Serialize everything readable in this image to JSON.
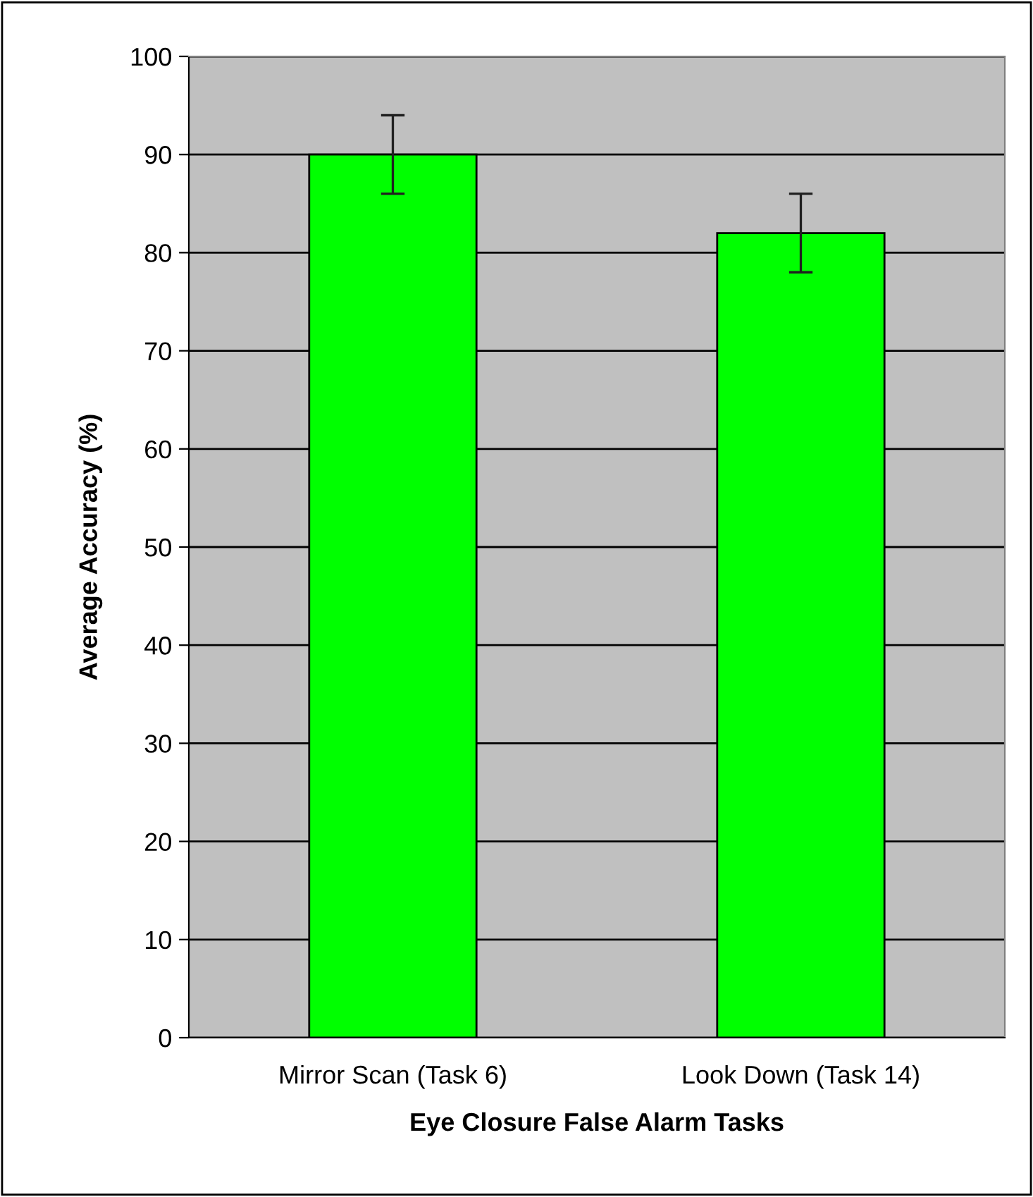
{
  "chart_data": {
    "type": "bar",
    "xlabel": "Eye Closure False Alarm Tasks",
    "ylabel": "Average Accuracy (%)",
    "categories": [
      "Mirror Scan (Task 6)",
      "Look Down (Task 14)"
    ],
    "values": [
      90,
      82
    ],
    "errors": [
      4,
      4
    ],
    "color": "#00ff00",
    "ylim": [
      0,
      100
    ],
    "yticks": [
      0,
      10,
      20,
      30,
      40,
      50,
      60,
      70,
      80,
      90,
      100
    ],
    "grid": "y"
  }
}
